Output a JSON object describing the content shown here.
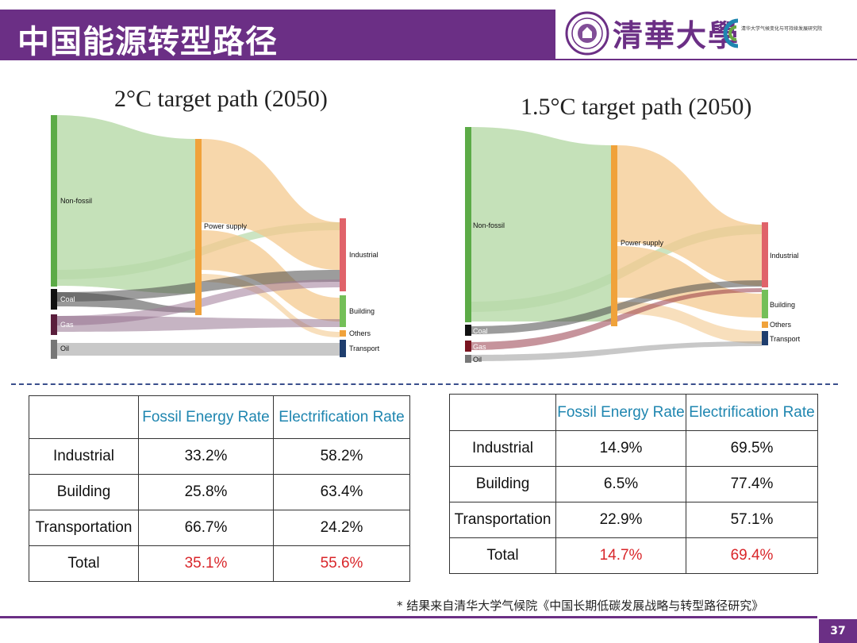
{
  "header": {
    "title": "中国能源转型路径"
  },
  "logos": {
    "university": "清華大學",
    "institute": "清华大学气候变化与可持续发展研究院"
  },
  "sankey_left": {
    "title": "2°C target path (2050)",
    "sources": [
      "Non-fossil",
      "Coal",
      "Gas",
      "Oil"
    ],
    "middle": "Power supply",
    "sinks": [
      "Industrial",
      "Building",
      "Others",
      "Transport"
    ]
  },
  "sankey_right": {
    "title": "1.5°C target path (2050)",
    "sources": [
      "Non-fossil",
      "Coal",
      "Gas",
      "Oil"
    ],
    "middle": "Power supply",
    "sinks": [
      "Industrial",
      "Building",
      "Others",
      "Transport"
    ]
  },
  "table_left": {
    "headers": [
      "",
      "Fossil Energy Rate",
      "Electrification Rate"
    ],
    "rows": [
      [
        "Industrial",
        "33.2%",
        "58.2%"
      ],
      [
        "Building",
        "25.8%",
        "63.4%"
      ],
      [
        "Transportation",
        "66.7%",
        "24.2%"
      ],
      [
        "Total",
        "35.1%",
        "55.6%"
      ]
    ]
  },
  "table_right": {
    "headers": [
      "",
      "Fossil Energy Rate",
      "Electrification Rate"
    ],
    "rows": [
      [
        "Industrial",
        "14.9%",
        "69.5%"
      ],
      [
        "Building",
        "6.5%",
        "77.4%"
      ],
      [
        "Transportation",
        "22.9%",
        "57.1%"
      ],
      [
        "Total",
        "14.7%",
        "69.4%"
      ]
    ]
  },
  "footnote": "* 结果来自清华大学气候院《中国长期低碳发展战略与转型路径研究》",
  "page_number": "37",
  "colors": {
    "brand": "#6b2f85",
    "header_blue": "#1f86b0",
    "highlight_red": "#d9262a"
  }
}
